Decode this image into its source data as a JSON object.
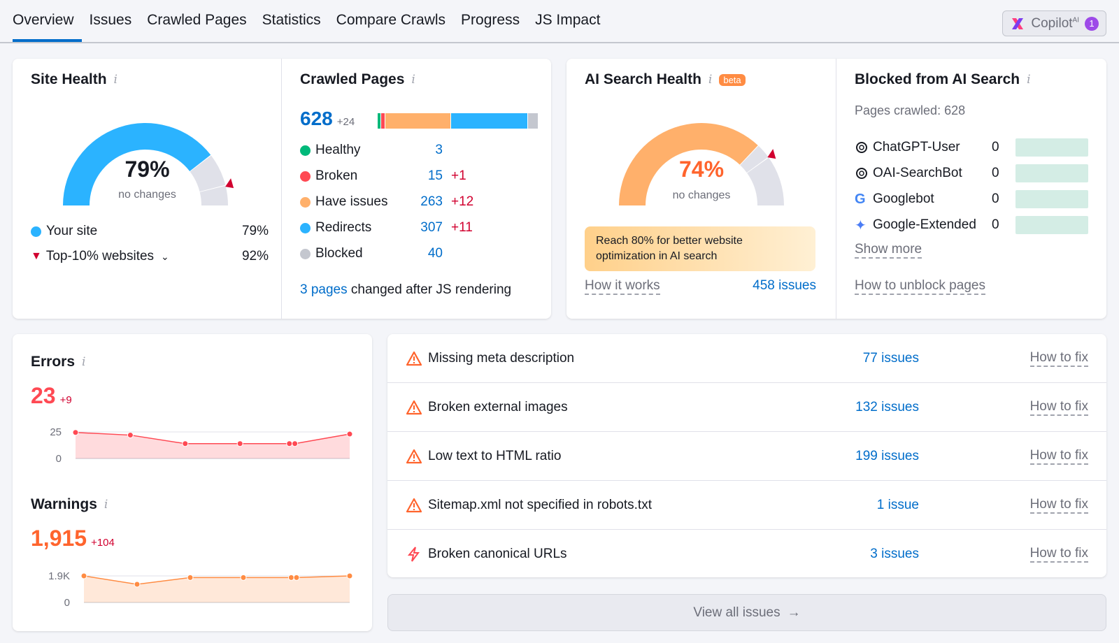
{
  "tabs": [
    "Overview",
    "Issues",
    "Crawled Pages",
    "Statistics",
    "Compare Crawls",
    "Progress",
    "JS Impact"
  ],
  "copilot": {
    "label": "Copilot",
    "sup": "AI",
    "count": "1"
  },
  "site_health": {
    "title": "Site Health",
    "value_pct": 79,
    "value": "79%",
    "sub": "no changes",
    "top10_pct": 92,
    "legend": [
      {
        "label": "Your site",
        "value": "79%"
      },
      {
        "label": "Top-10% websites",
        "value": "92%"
      }
    ],
    "color": "#2bb3ff"
  },
  "crawled": {
    "title": "Crawled Pages",
    "total": "628",
    "delta": "+24",
    "items": [
      {
        "label": "Healthy",
        "value": "3",
        "delta": "",
        "color": "#00b97a",
        "n": 3
      },
      {
        "label": "Broken",
        "value": "15",
        "delta": "+1",
        "color": "#ff4953",
        "n": 15
      },
      {
        "label": "Have issues",
        "value": "263",
        "delta": "+12",
        "color": "#ffb06b",
        "n": 263
      },
      {
        "label": "Redirects",
        "value": "307",
        "delta": "+11",
        "color": "#2bb3ff",
        "n": 307
      },
      {
        "label": "Blocked",
        "value": "40",
        "delta": "",
        "color": "#c4c7cf",
        "n": 40
      }
    ],
    "js_link": "3 pages",
    "js_text": "changed after JS rendering"
  },
  "ai_health": {
    "title": "AI Search Health",
    "beta": "beta",
    "value_pct": 74,
    "value": "74%",
    "sub": "no changes",
    "target_pct": 80,
    "note": "Reach 80% for better website optimization in AI search",
    "how": "How it works",
    "issues": "458 issues",
    "color": "#ffb06b"
  },
  "blocked": {
    "title": "Blocked from AI Search",
    "crawled": "Pages crawled: 628",
    "bots": [
      {
        "name": "ChatGPT-User",
        "value": "0",
        "icon": "openai-icon"
      },
      {
        "name": "OAI-SearchBot",
        "value": "0",
        "icon": "openai-icon"
      },
      {
        "name": "Googlebot",
        "value": "0",
        "icon": "google-icon"
      },
      {
        "name": "Google-Extended",
        "value": "0",
        "icon": "gemini-icon"
      }
    ],
    "show_more": "Show more",
    "unblock": "How to unblock pages"
  },
  "errors": {
    "title": "Errors",
    "value": "23",
    "delta": "+9",
    "y_ticks": [
      "25",
      "0"
    ]
  },
  "warnings": {
    "title": "Warnings",
    "value": "1,915",
    "delta": "+104",
    "y_ticks": [
      "1.9K",
      "0"
    ]
  },
  "chart_data": [
    {
      "type": "area",
      "title": "Errors",
      "ylim": [
        0,
        25
      ],
      "values": [
        24.5,
        22,
        14,
        14,
        14,
        14,
        23
      ],
      "color": "#ff4953"
    },
    {
      "type": "area",
      "title": "Warnings",
      "ylim": [
        0,
        1900
      ],
      "values": [
        1900,
        1300,
        1780,
        1780,
        1780,
        1780,
        1900
      ],
      "color": "#ff8c43"
    }
  ],
  "issues": [
    {
      "name": "Missing meta description",
      "count": "77 issues",
      "fix": "How to fix",
      "type": "warning"
    },
    {
      "name": "Broken external images",
      "count": "132 issues",
      "fix": "How to fix",
      "type": "warning"
    },
    {
      "name": "Low text to HTML ratio",
      "count": "199 issues",
      "fix": "How to fix",
      "type": "warning"
    },
    {
      "name": "Sitemap.xml not specified in robots.txt",
      "count": "1 issue",
      "fix": "How to fix",
      "type": "warning"
    },
    {
      "name": "Broken canonical URLs",
      "count": "3 issues",
      "fix": "How to fix",
      "type": "bolt"
    }
  ],
  "view_all": "View all issues"
}
